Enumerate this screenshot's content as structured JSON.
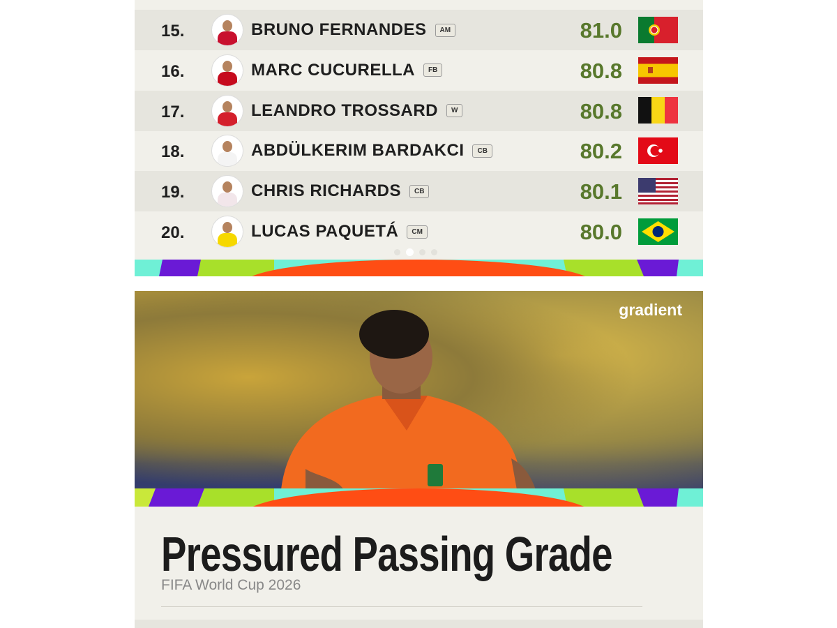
{
  "leaderboard": {
    "rows": [
      {
        "rank": "15.",
        "name": "BRUNO FERNANDES",
        "position": "AM",
        "grade": "81.0"
      },
      {
        "rank": "16.",
        "name": "MARC CUCURELLA",
        "position": "FB",
        "grade": "80.8"
      },
      {
        "rank": "17.",
        "name": "LEANDRO TROSSARD",
        "position": "W",
        "grade": "80.8"
      },
      {
        "rank": "18.",
        "name": "ABDÜLKERIM BARDAKCI",
        "position": "CB",
        "grade": "80.2"
      },
      {
        "rank": "19.",
        "name": "CHRIS RICHARDS",
        "position": "CB",
        "grade": "80.1"
      },
      {
        "rank": "20.",
        "name": "LUCAS PAQUETÁ",
        "position": "CM",
        "grade": "80.0"
      }
    ]
  },
  "feature": {
    "logo": "gradient",
    "title": "Pressured Passing Grade",
    "subtitle": "FIFA World Cup 2026"
  }
}
